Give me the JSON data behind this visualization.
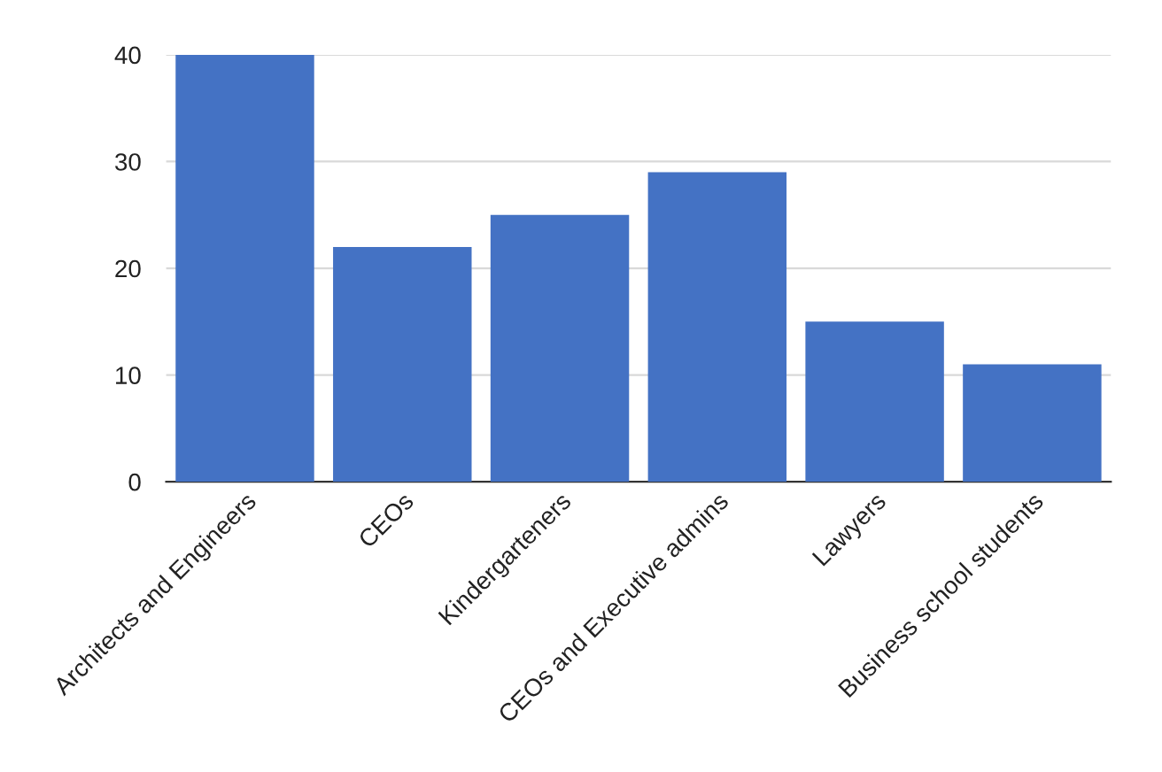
{
  "chart_data": {
    "type": "bar",
    "categories": [
      "Architects and Engineers",
      "CEOs",
      "Kindergarteners",
      "CEOs and Executive admins",
      "Lawyers",
      "Business school students"
    ],
    "values": [
      40,
      22,
      25,
      29,
      15,
      11
    ],
    "color": "#4472c4",
    "ylim": [
      0,
      40
    ],
    "yticks": [
      0,
      10,
      20,
      30,
      40
    ],
    "grid": "y",
    "legend": false
  }
}
